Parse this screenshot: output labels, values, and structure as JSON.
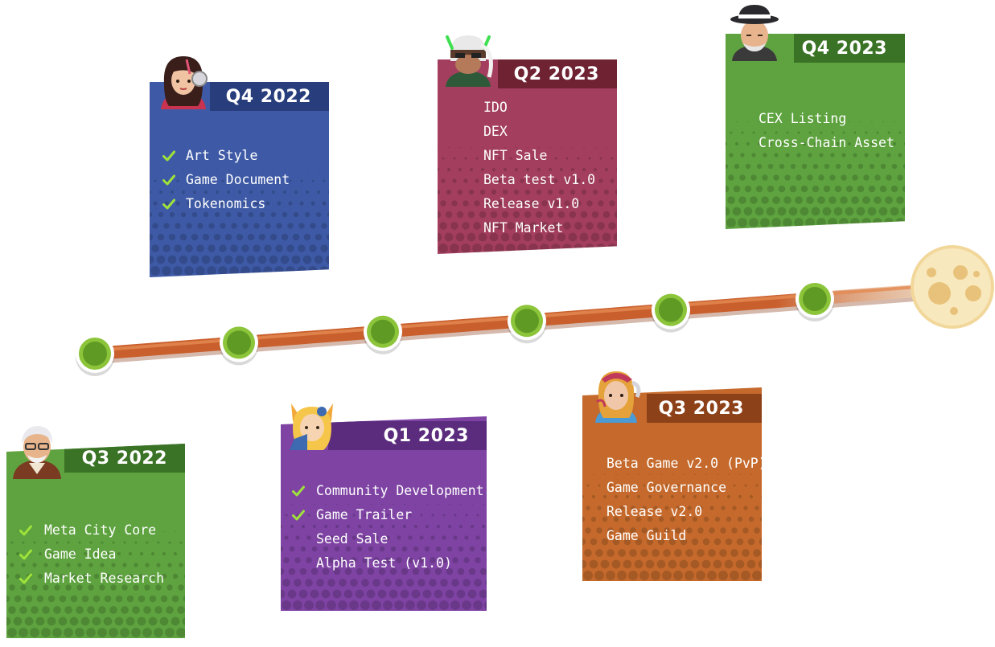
{
  "colors": {
    "track": "#c95f2c",
    "node": "#8cc43a",
    "node_inner": "#5f9a24",
    "moon": "#f6e3ac",
    "check": "#9ee23b"
  },
  "milestones": [
    {
      "period": "Q3 2022",
      "color": "#5ea33f",
      "header_color": "#3b7326",
      "avatar": "old-man-avatar",
      "items": [
        {
          "text": "Meta City Core",
          "done": true
        },
        {
          "text": "Game Idea",
          "done": true
        },
        {
          "text": "Market Research",
          "done": true
        }
      ]
    },
    {
      "period": "Q4 2022",
      "color": "#3e5aa6",
      "header_color": "#283d7c",
      "avatar": "headphone-girl-avatar",
      "items": [
        {
          "text": "Art Style",
          "done": true
        },
        {
          "text": "Game Document",
          "done": true
        },
        {
          "text": "Tokenomics",
          "done": true
        }
      ]
    },
    {
      "period": "Q1 2023",
      "color": "#7e43a3",
      "header_color": "#5b2c7d",
      "avatar": "fox-girl-avatar",
      "items": [
        {
          "text": "Community Development",
          "done": true
        },
        {
          "text": "Game Trailer",
          "done": true
        },
        {
          "text": "Seed Sale",
          "done": false
        },
        {
          "text": "Alpha Test (v1.0)",
          "done": false
        }
      ]
    },
    {
      "period": "Q2 2023",
      "color": "#a33e5e",
      "header_color": "#6e2232",
      "avatar": "masked-warrior-avatar",
      "items": [
        {
          "text": "IDO",
          "done": false
        },
        {
          "text": "DEX",
          "done": false
        },
        {
          "text": "NFT Sale",
          "done": false
        },
        {
          "text": "Beta test v1.0",
          "done": false
        },
        {
          "text": "Release v1.0",
          "done": false
        },
        {
          "text": "NFT Market",
          "done": false
        }
      ]
    },
    {
      "period": "Q3 2023",
      "color": "#c56a2c",
      "header_color": "#8d4118",
      "avatar": "tattoo-girl-avatar",
      "items": [
        {
          "text": "Beta Game v2.0 (PvP)",
          "done": false
        },
        {
          "text": "Game Governance",
          "done": false
        },
        {
          "text": "Release v2.0",
          "done": false
        },
        {
          "text": "Game Guild",
          "done": false
        }
      ]
    },
    {
      "period": "Q4 2023",
      "color": "#5ea33f",
      "header_color": "#3b7326",
      "avatar": "fedora-man-avatar",
      "items": [
        {
          "text": "CEX Listing",
          "done": false
        },
        {
          "text": "Cross-Chain Asset",
          "done": false
        }
      ]
    }
  ]
}
